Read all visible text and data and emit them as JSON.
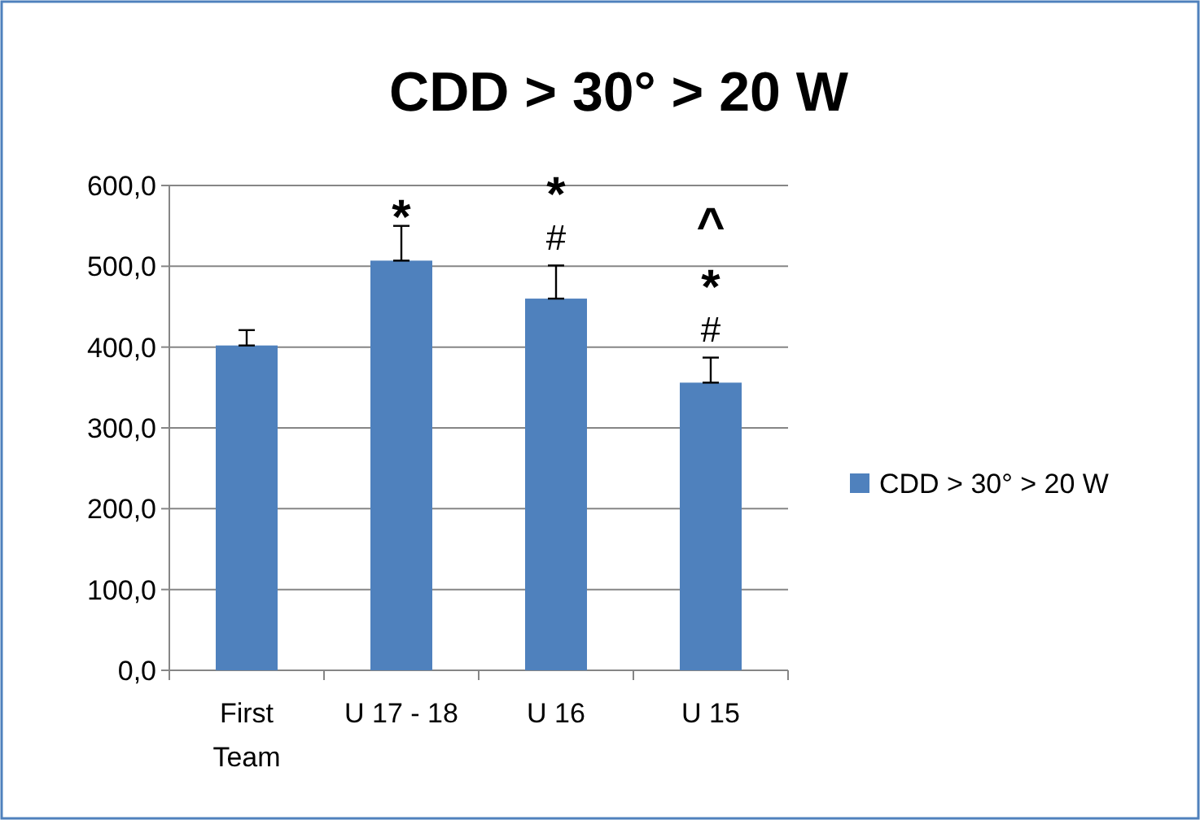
{
  "chart_data": {
    "type": "bar",
    "title": "CDD > 30° > 20 W",
    "categories": [
      "First Team",
      "U 17 - 18",
      "U 16",
      "U 15"
    ],
    "series": [
      {
        "name": "CDD > 30° > 20 W",
        "color": "#4f81bd",
        "values": [
          402,
          507,
          460,
          356
        ],
        "errors": [
          19,
          43,
          41,
          31
        ]
      }
    ],
    "ylim": [
      0,
      600
    ],
    "yticks": [
      {
        "value": 0,
        "label": "0,0"
      },
      {
        "value": 100,
        "label": "100,0"
      },
      {
        "value": 200,
        "label": "200,0"
      },
      {
        "value": 300,
        "label": "300,0"
      },
      {
        "value": 400,
        "label": "400,0"
      },
      {
        "value": 500,
        "label": "500,0"
      },
      {
        "value": 600,
        "label": "600,0"
      }
    ],
    "grid": "y",
    "legend": "right",
    "annotations": [
      {
        "text": "*",
        "x": "U 17 - 18",
        "y": 507
      },
      {
        "text": "#",
        "x": "U 16",
        "y": 460
      },
      {
        "text": "*",
        "x": "U 16",
        "y": 460
      },
      {
        "text": "#",
        "x": "U 15",
        "y": 356
      },
      {
        "text": "*",
        "x": "U 15",
        "y": 356
      },
      {
        "text": "^",
        "x": "U 15",
        "y": 356
      }
    ]
  }
}
